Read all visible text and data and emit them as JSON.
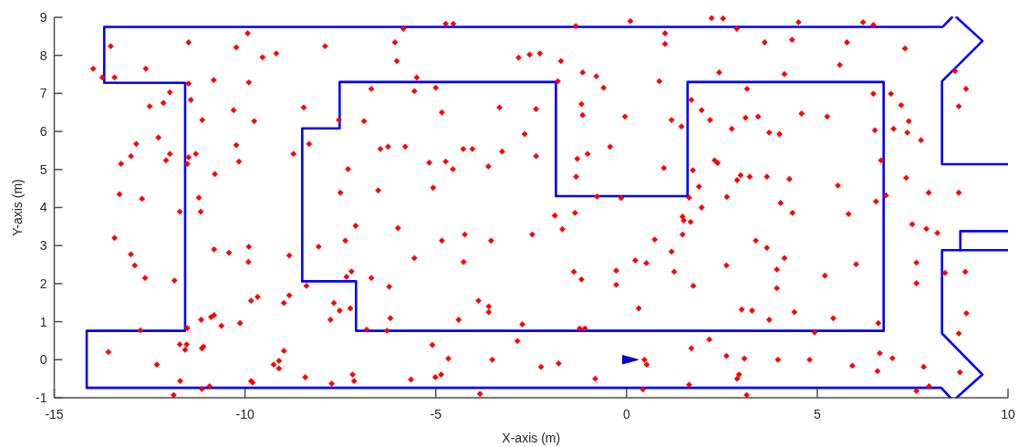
{
  "chart_data": {
    "type": "scatter",
    "xlabel": "X-axis (m)",
    "ylabel": "Y-axis (m)",
    "xlim": [
      -15,
      10
    ],
    "ylim": [
      -1,
      9
    ],
    "xticks": [
      -15,
      -10,
      -5,
      0,
      5,
      10
    ],
    "yticks": [
      -1,
      0,
      1,
      2,
      3,
      4,
      5,
      6,
      7,
      8,
      9
    ],
    "series": [
      {
        "type": "line",
        "color": "#0000ff",
        "x": [
          10,
          8.27,
          8.27,
          9.33,
          8.65
        ],
        "values": [
          5.14,
          5.14,
          7.32,
          8.38,
          9.0
        ]
      },
      {
        "type": "line",
        "color": "#0000ff",
        "x": [
          8.53,
          8.29,
          -13.69,
          -13.69,
          -11.57,
          -11.57,
          -14.15,
          -14.15,
          8.25,
          8.49
        ],
        "values": [
          9.0,
          8.75,
          8.75,
          7.28,
          7.28,
          0.76,
          0.76,
          -0.74,
          -0.74,
          -1.0
        ]
      },
      {
        "type": "line",
        "color": "#0000ff",
        "x": [
          8.65,
          9.33,
          8.27,
          8.27,
          10
        ],
        "values": [
          -1.0,
          -0.39,
          0.69,
          2.88,
          2.88
        ]
      },
      {
        "type": "line",
        "color": "#0000ff",
        "x": [
          8.75,
          8.75,
          10
        ],
        "values": [
          2.88,
          3.38,
          3.38
        ]
      },
      {
        "type": "line",
        "color": "#0000ff",
        "x": [
          -8.5,
          -8.5,
          -7.52,
          -7.52,
          -1.85,
          -1.85,
          1.6,
          1.6,
          6.74,
          6.74
        ],
        "values": [
          2.06,
          6.08,
          6.08,
          7.3,
          7.3,
          4.3,
          4.3,
          7.3,
          7.3,
          0.76
        ]
      },
      {
        "type": "line",
        "color": "#0000ff",
        "x": [
          6.74,
          -7.09,
          -7.09,
          -8.5
        ],
        "values": [
          0.76,
          0.76,
          2.06,
          2.06
        ]
      },
      {
        "color": "#ff0000",
        "marker": "diamond",
        "x": [
          -13.52,
          -13.98,
          -13.74,
          -13.42,
          -12.6,
          -11.48,
          -9.93,
          -10.23,
          -9.54,
          -9.18,
          -7.9,
          -11.48,
          -10.82,
          -9.9,
          -11.97,
          -11.42,
          -12.5,
          -12.14,
          -10.3,
          -8.46,
          -11.12,
          -9.76,
          -7.54,
          -6.88,
          -6.69,
          -12.27,
          -12.85,
          -12.99,
          -13.25,
          -11.97,
          -12.07,
          -11.48,
          -11.51,
          -11.29,
          -10.23,
          -10.16,
          -10.79,
          -8.73,
          -8.32,
          -7.3,
          -13.29,
          -12.7,
          -11.21,
          -7.5,
          -5.85,
          -4.74,
          -4.54,
          -1.33,
          0.1,
          1.01,
          1.01,
          -6.07,
          -6.02,
          -2.83,
          -2.54,
          -2.27,
          -1.72,
          -5.5,
          -5.56,
          -5,
          -1.8,
          -1.15,
          -0.79,
          -0.6,
          0.86,
          -4.84,
          -3.33,
          -2.37,
          -1.18,
          -1.15,
          -0.04,
          1.18,
          1.44,
          -6.45,
          -6.25,
          -5.8,
          -4.28,
          -4.04,
          -2.67,
          -3.26,
          -2.37,
          -5.17,
          -4.74,
          -4.55,
          -3.62,
          -1.29,
          -1.02,
          -0.43,
          -1.32,
          0.98,
          -6.51,
          -5.07,
          -0.77,
          -0.14,
          1.64,
          2.23,
          2.53,
          2.89,
          4.51,
          6.2,
          6.47,
          3.62,
          4.34,
          5.78,
          7.3,
          5.59,
          2.43,
          4.14,
          8.61,
          8.9,
          8.71,
          3.16,
          1.7,
          1.97,
          2.19,
          3.12,
          3.45,
          2.76,
          3.74,
          4.01,
          4.59,
          5.26,
          6.47,
          6.93,
          7.2,
          7.4,
          6.51,
          7,
          7.36,
          7.72,
          6.67,
          2.31,
          2.39,
          1.74,
          2.99,
          2.9,
          3.23,
          3.68,
          4.27,
          5.54,
          7.33,
          1.9,
          2.63,
          4.04,
          6.8,
          6.54,
          7.92,
          8.71,
          1.97,
          -11.71,
          -11.16,
          -13.42,
          -12.99,
          -12.89,
          -12.62,
          -11.85,
          -10.81,
          -10.42,
          -9.9,
          -9.91,
          -8.84,
          -8.07,
          -7.37,
          -7.1,
          -7.21,
          -7.34,
          -6.69,
          -8.39,
          -9.84,
          -9.67,
          -8.98,
          -8.84,
          -7.67,
          -7.52,
          -7.24,
          -7.76,
          -6.81,
          -11.15,
          -10.89,
          -10.81,
          -10.62,
          -10.13,
          -11.51,
          -12.74,
          -13.58,
          -12.31,
          -11.71,
          -11.53,
          -11.57,
          -11.13,
          -11.09,
          -8.98,
          -9.25,
          -9.11,
          -9.11,
          -11.7,
          -9.84,
          -9.8,
          -8.42,
          -7.73,
          -7.18,
          -7.14,
          -11.13,
          -10.93,
          -11.87,
          -5.99,
          -5.56,
          -4.84,
          -4.24,
          -4.27,
          -3.55,
          -2.47,
          -1.88,
          -1.35,
          -1.68,
          -1.38,
          -1.18,
          -0.27,
          -0.27,
          0.23,
          0.52,
          0.74,
          1.18,
          1.25,
          1.47,
          1.47,
          1.5,
          1.68,
          1.75,
          -6.22,
          -3.88,
          -3.61,
          -3.61,
          -6.19,
          -4.4,
          -2.73,
          0.32,
          -6.28,
          -1.23,
          -1.09,
          -5.09,
          -2.86,
          -4.67,
          -3.52,
          -2.24,
          -1.78,
          0.47,
          0.53,
          1.7,
          -5.65,
          -5.01,
          -4.86,
          -0.82,
          0.43,
          1.64,
          -3.84,
          4.35,
          5.82,
          7.49,
          7.86,
          8.15,
          3.39,
          3.68,
          4.14,
          2.62,
          3.94,
          6.02,
          5.2,
          7.6,
          7.6,
          8.35,
          8.88,
          3.94,
          3.02,
          3.29,
          4.4,
          3.74,
          5.42,
          6.6,
          8.91,
          8.71,
          4.93,
          2.17,
          2.62,
          3.09,
          3.97,
          4.8,
          6.64,
          6.97,
          5.92,
          6.58,
          7.79,
          8.74,
          2.95,
          2.9,
          7.93,
          7.6,
          3.15
        ],
        "values": [
          8.24,
          7.65,
          7.42,
          7.42,
          7.65,
          8.34,
          8.58,
          8.21,
          7.95,
          8.05,
          8.24,
          7.26,
          7.35,
          7.29,
          7.03,
          6.83,
          6.66,
          6.75,
          6.56,
          6.63,
          6.3,
          6.27,
          6.3,
          6.27,
          7.12,
          5.84,
          5.67,
          5.35,
          5.15,
          5.41,
          5.24,
          5.32,
          5.15,
          5.41,
          5.64,
          5.21,
          4.88,
          5.41,
          5.67,
          5.01,
          4.35,
          4.23,
          4.26,
          4.39,
          8.7,
          8.83,
          8.83,
          8.77,
          8.9,
          8.58,
          8.3,
          8.34,
          7.85,
          7.94,
          8.02,
          8.05,
          7.85,
          7.42,
          7.06,
          7.15,
          7.32,
          7.55,
          7.45,
          7.15,
          7.32,
          6.5,
          6.63,
          6.59,
          6.72,
          6.43,
          6.39,
          6.3,
          6.13,
          5.54,
          5.6,
          5.6,
          5.54,
          5.54,
          5.93,
          5.47,
          5.35,
          5.18,
          5.21,
          5.01,
          5.08,
          5.28,
          5.41,
          5.6,
          4.81,
          5.04,
          4.45,
          4.52,
          4.29,
          4.25,
          4.26,
          8.98,
          8.97,
          8.7,
          8.87,
          8.87,
          8.8,
          8.34,
          8.41,
          8.34,
          8.18,
          7.75,
          7.55,
          7.51,
          7.59,
          7.12,
          6.66,
          7.12,
          6.83,
          6.56,
          6.3,
          6.36,
          6.39,
          6.07,
          5.97,
          5.93,
          6.47,
          6.39,
          6.99,
          6.99,
          6.69,
          6.27,
          6.03,
          6.07,
          5.97,
          5.77,
          5.24,
          5.24,
          5.17,
          4.98,
          4.85,
          4.72,
          4.81,
          4.81,
          4.75,
          4.58,
          4.78,
          4.55,
          4.28,
          4.12,
          4.32,
          4.16,
          4.39,
          4.39,
          4,
          3.89,
          3.89,
          3.2,
          2.77,
          2.48,
          2.15,
          2.08,
          2.9,
          2.81,
          2.97,
          2.57,
          2.74,
          2.97,
          3.13,
          3.52,
          2.32,
          2.18,
          2.15,
          1.94,
          1.55,
          1.65,
          1.49,
          1.69,
          1.49,
          1.29,
          1.35,
          1.05,
          0.79,
          1.05,
          1.12,
          1.17,
          0.89,
          0.96,
          0.83,
          0.77,
          0.2,
          -0.13,
          0.4,
          0.4,
          0.26,
          0.3,
          0.34,
          0.23,
          -0.13,
          -0.03,
          -0.23,
          -0.56,
          -0.56,
          -0.6,
          -0.46,
          -0.63,
          -0.39,
          -0.56,
          -0.77,
          -0.7,
          -0.93,
          3.46,
          2.67,
          3.13,
          3.29,
          2.57,
          3.13,
          3.29,
          3.79,
          3.86,
          3.43,
          2.31,
          2.11,
          2.34,
          1.97,
          2.61,
          2.54,
          3.16,
          2.84,
          2.31,
          3.29,
          3.76,
          3.66,
          3.62,
          1.94,
          1.92,
          1.55,
          1.4,
          1.25,
          1.09,
          1.05,
          0.93,
          1.35,
          0.76,
          0.82,
          0.82,
          0.39,
          0.49,
          0.03,
          0,
          -0.19,
          -0.1,
          0,
          -0.13,
          0.3,
          -0.52,
          -0.46,
          -0.39,
          -0.5,
          -0.78,
          -0.66,
          -0.9,
          3.86,
          3.83,
          3.56,
          3.44,
          3.33,
          3.13,
          2.94,
          2.67,
          2.48,
          2.37,
          2.51,
          2.21,
          2.55,
          2.01,
          2.28,
          2.31,
          1.88,
          1.32,
          1.29,
          1.25,
          1.05,
          1.09,
          0.96,
          1.22,
          0.69,
          0.72,
          0.53,
          0.1,
          0.03,
          0,
          0,
          0.17,
          0.04,
          -0.16,
          -0.3,
          -0.19,
          -0.33,
          -0.39,
          -0.5,
          -0.7,
          -0.82,
          -0.93
        ]
      },
      {
        "color": "#0000ff",
        "marker": "triangle",
        "x": [
          0.1
        ],
        "values": [
          0
        ]
      }
    ]
  }
}
